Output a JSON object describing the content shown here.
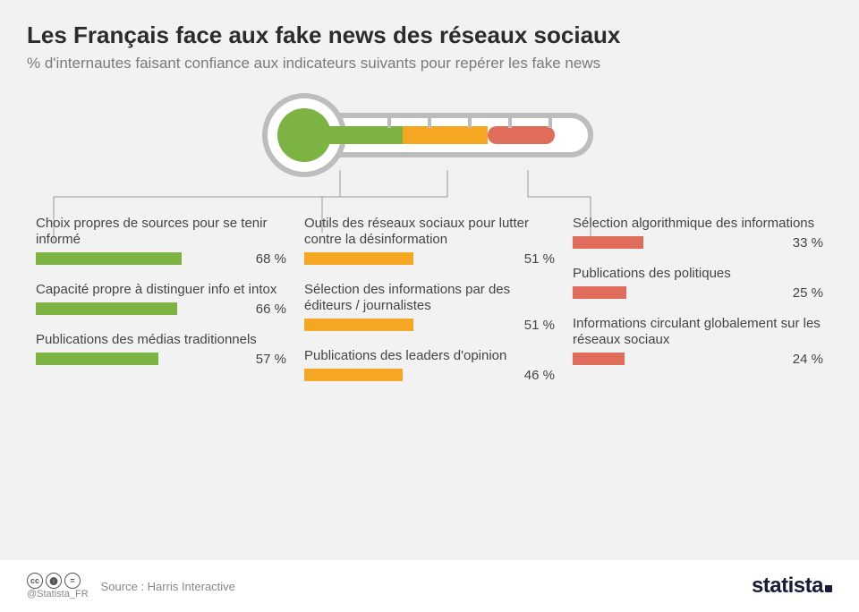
{
  "title": "Les Français face aux fake news des réseaux sociaux",
  "subtitle": "% d'internautes faisant confiance aux indicateurs suivants pour repérer les fake news",
  "colors": {
    "green": "#7cb342",
    "orange": "#f5a623",
    "red": "#e06c5c",
    "thermo_outline": "#bdbdbd",
    "thermo_fill_bg": "#ffffff",
    "bg": "#f2f2f2",
    "text": "#444444"
  },
  "thermometer": {
    "segments": [
      {
        "color": "#7cb342",
        "width_pct": 38
      },
      {
        "color": "#f5a623",
        "width_pct": 34
      },
      {
        "color": "#e06c5c",
        "width_pct": 28
      }
    ],
    "bulb_color": "#7cb342"
  },
  "groups": [
    {
      "color": "#7cb342",
      "items": [
        {
          "label": "Choix propres de sources pour se tenir informé",
          "value": 68,
          "display": "68 %"
        },
        {
          "label": "Capacité propre à distinguer info et intox",
          "value": 66,
          "display": "66 %"
        },
        {
          "label": "Publications des médias traditionnels",
          "value": 57,
          "display": "57 %"
        }
      ]
    },
    {
      "color": "#f5a623",
      "items": [
        {
          "label": "Outils des réseaux sociaux pour lutter contre la désinformation",
          "value": 51,
          "display": "51 %"
        },
        {
          "label": "Sélection des informations par des éditeurs / journalistes",
          "value": 51,
          "display": "51 %"
        },
        {
          "label": "Publications des leaders d'opinion",
          "value": 46,
          "display": "46 %"
        }
      ]
    },
    {
      "color": "#e06c5c",
      "items": [
        {
          "label": "Sélection algorithmique des informations",
          "value": 33,
          "display": "33 %"
        },
        {
          "label": "Publications des politiques",
          "value": 25,
          "display": "25 %"
        },
        {
          "label": "Informations circulant globalement sur les réseaux sociaux",
          "value": 24,
          "display": "24 %"
        }
      ]
    }
  ],
  "footer": {
    "handle": "@Statista_FR",
    "source": "Source : Harris Interactive",
    "logo": "statista"
  },
  "bar_scale_max": 100
}
